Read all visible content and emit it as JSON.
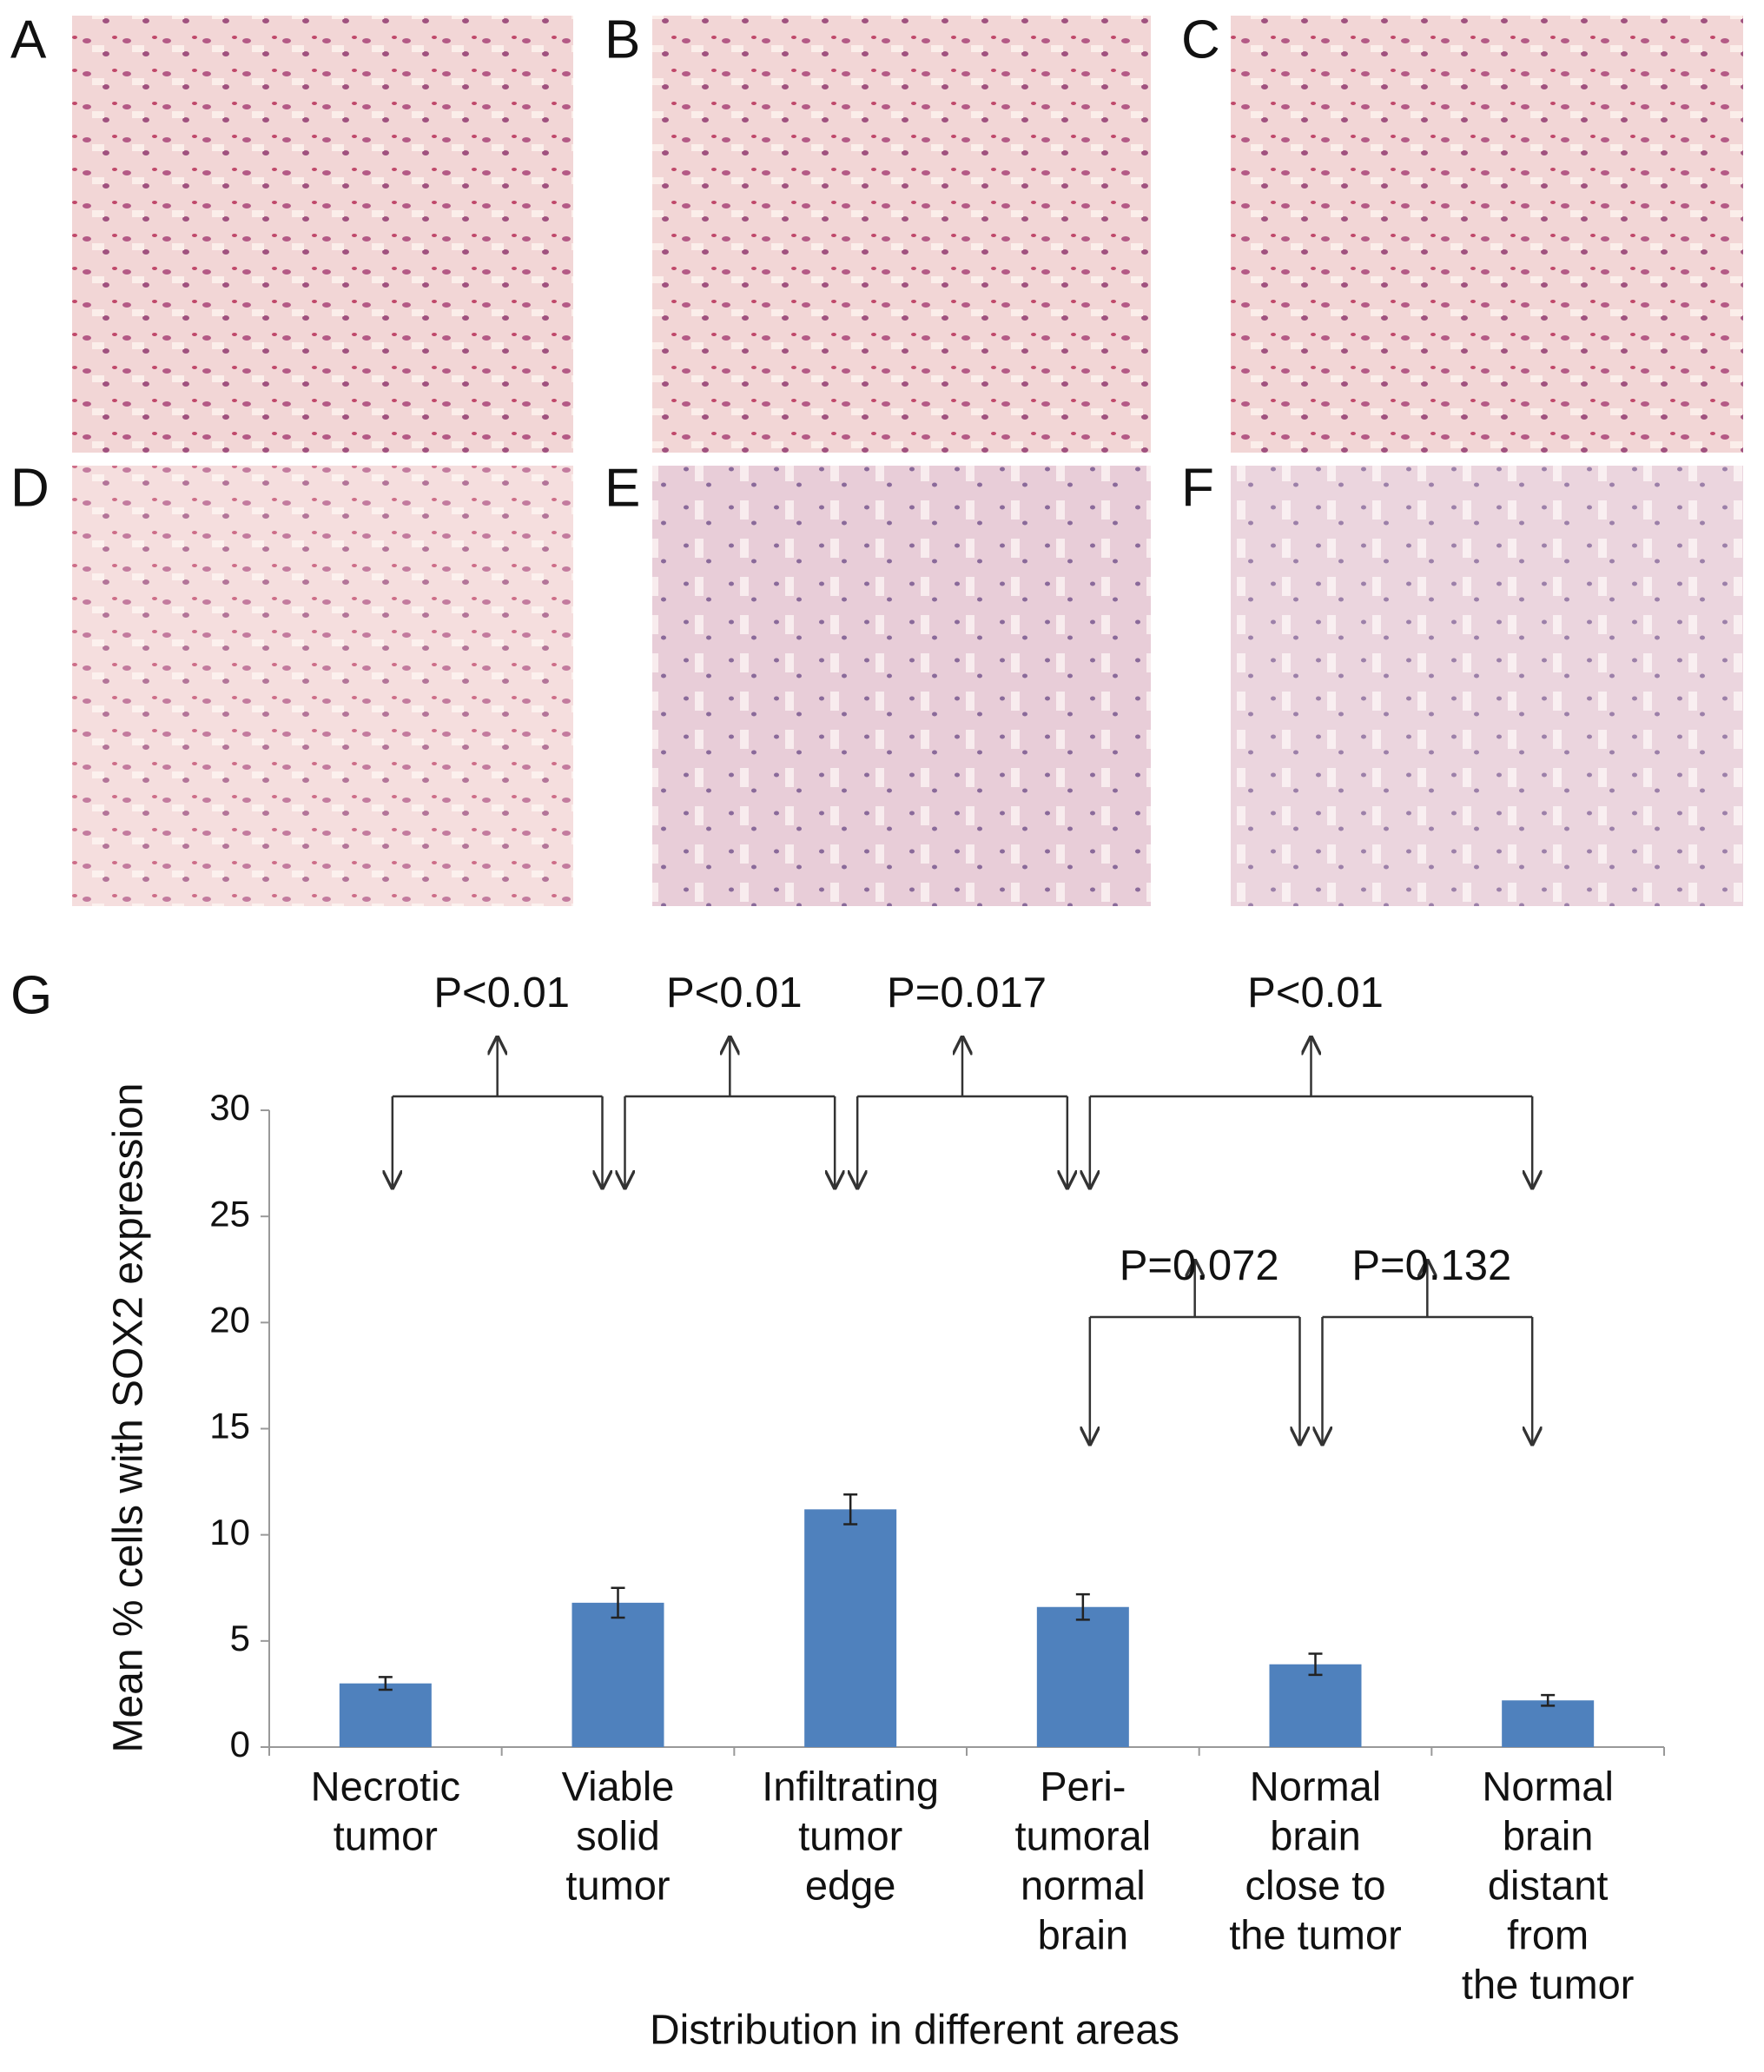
{
  "panel_labels": [
    "A",
    "B",
    "C",
    "D",
    "E",
    "F",
    "G"
  ],
  "chart_data": {
    "type": "bar",
    "categories": [
      [
        "Necrotic",
        "tumor"
      ],
      [
        "Viable",
        "solid",
        "tumor"
      ],
      [
        "Infiltrating",
        "tumor",
        "edge"
      ],
      [
        "Peri-",
        "tumoral",
        "normal",
        "brain"
      ],
      [
        "Normal",
        "brain",
        "close to",
        "the tumor"
      ],
      [
        "Normal",
        "brain",
        "distant",
        "from",
        "the tumor"
      ]
    ],
    "values": [
      3.0,
      6.8,
      11.2,
      6.6,
      3.9,
      2.2
    ],
    "errors": [
      0.3,
      0.7,
      0.7,
      0.6,
      0.5,
      0.25
    ],
    "color": "#4f81bd",
    "ylim": [
      0,
      30
    ],
    "yticks": [
      0,
      5,
      10,
      15,
      20,
      25,
      30
    ],
    "y_label": "Mean % cells with SOX2 expression",
    "x_label": "Distribution in different areas",
    "annotations": [
      "P<0.01",
      "P<0.01",
      "P=0.017",
      "P<0.01",
      "P=0.072",
      "P=0.132"
    ]
  }
}
